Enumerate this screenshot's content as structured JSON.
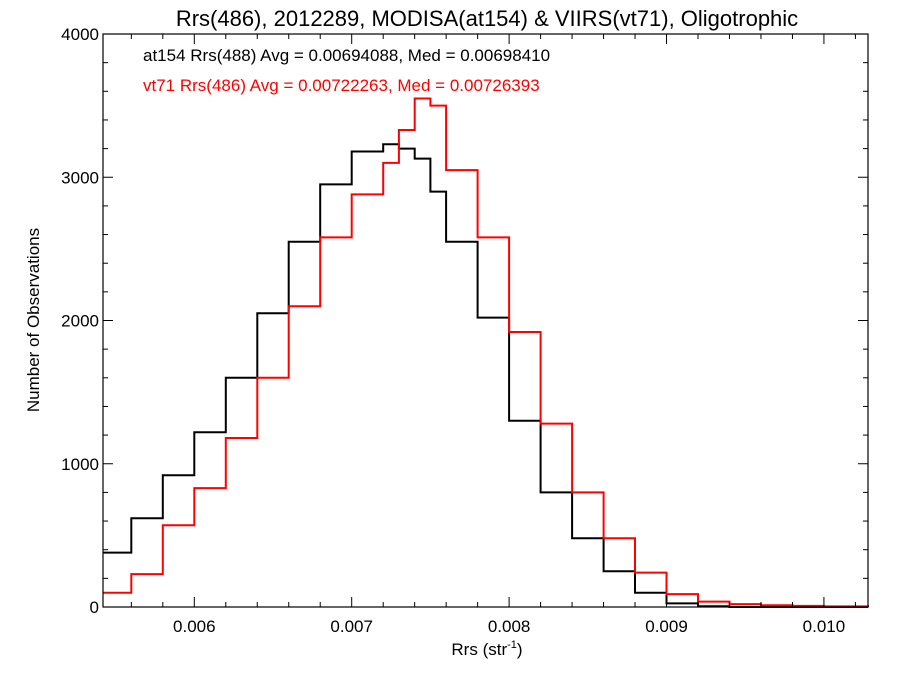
{
  "chart_data": {
    "type": "line",
    "style": "histogram-step",
    "title": "Rrs(486), 2012289, MODISA(at154) & VIIRS(vt71), Oligotrophic",
    "xlabel": "Rrs (str",
    "xlabel_sup": "-1",
    "xlabel_close": ")",
    "ylabel": "Number of Observations",
    "xlim": [
      0.00542,
      0.01028
    ],
    "ylim": [
      0,
      4000
    ],
    "xticks": [
      {
        "value": 0.006,
        "label": "0.006"
      },
      {
        "value": 0.007,
        "label": "0.007"
      },
      {
        "value": 0.008,
        "label": "0.008"
      },
      {
        "value": 0.009,
        "label": "0.009"
      },
      {
        "value": 0.01,
        "label": "0.010"
      }
    ],
    "yticks": [
      {
        "value": 0,
        "label": "0"
      },
      {
        "value": 1000,
        "label": "1000"
      },
      {
        "value": 2000,
        "label": "2000"
      },
      {
        "value": 3000,
        "label": "3000"
      },
      {
        "value": 4000,
        "label": "4000"
      }
    ],
    "grid": false,
    "annotations": [
      {
        "text": "at154 Rrs(488) Avg = 0.00694088, Med = 0.00698410",
        "color": "#000000"
      },
      {
        "text": "vt71 Rrs(486) Avg = 0.00722263, Med = 0.00726393",
        "color": "#ff0000"
      }
    ],
    "series": [
      {
        "color": "#000000",
        "x": [
          0.00542,
          0.0056,
          0.0058,
          0.006,
          0.0062,
          0.0064,
          0.0066,
          0.0068,
          0.007,
          0.0072,
          0.0073,
          0.0074,
          0.0075,
          0.0076,
          0.0078,
          0.008,
          0.0082,
          0.0084,
          0.0086,
          0.0088,
          0.009,
          0.0092,
          0.0094,
          0.0096,
          0.0098,
          0.01,
          0.01028
        ],
        "y": [
          380,
          620,
          920,
          1220,
          1600,
          2050,
          2550,
          2950,
          3180,
          3230,
          3200,
          3130,
          2900,
          2550,
          2020,
          1300,
          800,
          480,
          250,
          100,
          25,
          5,
          0,
          0,
          0,
          0,
          0
        ]
      },
      {
        "color": "#ff0000",
        "x": [
          0.00542,
          0.0056,
          0.0058,
          0.006,
          0.0062,
          0.0064,
          0.0066,
          0.0068,
          0.007,
          0.0072,
          0.0073,
          0.0074,
          0.0075,
          0.0076,
          0.0078,
          0.008,
          0.0082,
          0.0084,
          0.0086,
          0.0088,
          0.009,
          0.0092,
          0.0094,
          0.0096,
          0.0098,
          0.01,
          0.01028
        ],
        "y": [
          100,
          230,
          570,
          830,
          1180,
          1600,
          2100,
          2580,
          2880,
          3100,
          3330,
          3550,
          3500,
          3050,
          2580,
          1920,
          1280,
          800,
          480,
          240,
          90,
          38,
          20,
          12,
          8,
          4,
          0
        ]
      }
    ]
  }
}
